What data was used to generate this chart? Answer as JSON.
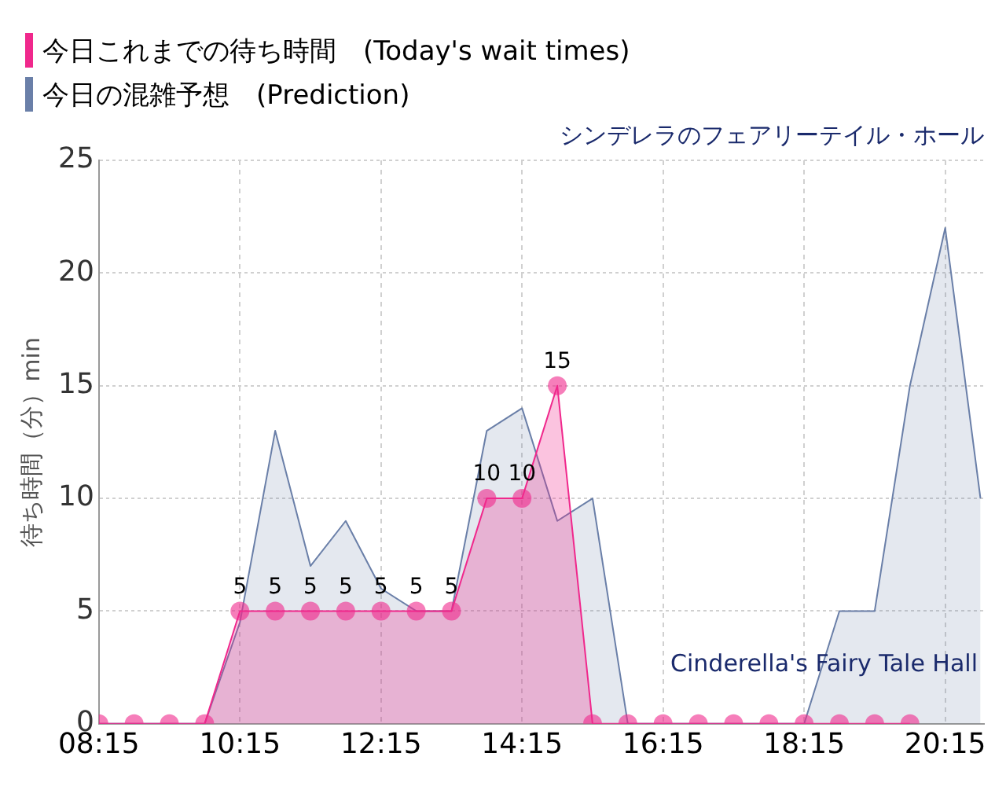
{
  "chart_data": {
    "type": "area",
    "title": "シンデレラのフェアリーテイル・ホール",
    "ylabel": "待ち時間（分）min",
    "annotations": [
      "Cinderella's Fairy Tale Hall"
    ],
    "xlim": [
      8.25,
      20.8
    ],
    "xticks": [
      {
        "value": 8.25,
        "label": "08:15"
      },
      {
        "value": 10.25,
        "label": "10:15"
      },
      {
        "value": 12.25,
        "label": "12:15"
      },
      {
        "value": 14.25,
        "label": "14:15"
      },
      {
        "value": 16.25,
        "label": "16:15"
      },
      {
        "value": 18.25,
        "label": "18:15"
      },
      {
        "value": 20.25,
        "label": "20:15"
      }
    ],
    "ylim": [
      0,
      25
    ],
    "yticks": [
      0,
      5,
      10,
      15,
      20,
      25
    ],
    "grid": true,
    "legend": "top left",
    "series": [
      {
        "name": "今日これまでの待ち時間　(Today's wait times)",
        "color": "#f0288c",
        "marker": "circle",
        "x": [
          8.25,
          8.75,
          9.25,
          9.75,
          10.25,
          10.75,
          11.25,
          11.75,
          12.25,
          12.75,
          13.25,
          13.75,
          14.25,
          14.75,
          15.25,
          15.75,
          16.25,
          16.75,
          17.25,
          17.75,
          18.25,
          18.75,
          19.25,
          19.75
        ],
        "values": [
          0,
          0,
          0,
          0,
          5,
          5,
          5,
          5,
          5,
          5,
          5,
          10,
          10,
          15,
          0,
          0,
          0,
          0,
          0,
          0,
          0,
          0,
          0,
          0
        ],
        "value_labels": [
          null,
          null,
          null,
          null,
          "5",
          "5",
          "5",
          "5",
          "5",
          "5",
          "5",
          "10",
          "10",
          "15",
          null,
          null,
          null,
          null,
          null,
          null,
          null,
          null,
          null,
          null
        ]
      },
      {
        "name": "今日の混雑予想　(Prediction)",
        "color": "#6a7fa8",
        "marker": "none",
        "x": [
          8.25,
          8.75,
          9.25,
          9.75,
          10.25,
          10.75,
          11.25,
          11.75,
          12.25,
          12.75,
          13.25,
          13.75,
          14.25,
          14.75,
          15.25,
          15.75,
          16.25,
          16.75,
          17.25,
          17.75,
          18.25,
          18.75,
          19.25,
          19.75,
          20.25,
          20.75
        ],
        "values": [
          0,
          0,
          0,
          0,
          4.5,
          13,
          7,
          9,
          6,
          5,
          5,
          13,
          14,
          9,
          10,
          0,
          0,
          0,
          0,
          0,
          0,
          5,
          5,
          15,
          22,
          10
        ]
      }
    ]
  }
}
